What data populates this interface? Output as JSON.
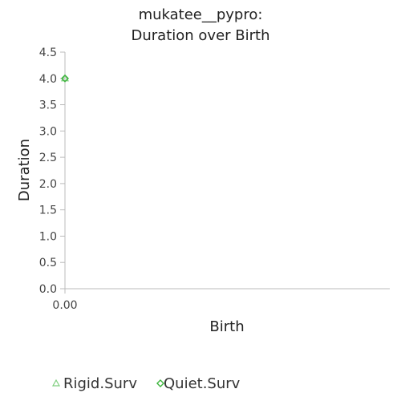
{
  "chart_data": {
    "type": "scatter",
    "title": [
      "mukatee__pypro:",
      "Duration over Birth"
    ],
    "xlabel": "Birth",
    "ylabel": "Duration",
    "y_ticks": [
      "0.0",
      "0.5",
      "1.0",
      "1.5",
      "2.0",
      "2.5",
      "3.0",
      "3.5",
      "4.0",
      "4.5"
    ],
    "y_tick_values": [
      0.0,
      0.5,
      1.0,
      1.5,
      2.0,
      2.5,
      3.0,
      3.5,
      4.0,
      4.5
    ],
    "x_ticks": [
      "0.00"
    ],
    "x_tick_values": [
      0.0
    ],
    "ylim": [
      0.0,
      4.5
    ],
    "xlim": [
      0.0,
      1.0
    ],
    "grid": false,
    "legend_position": "bottom",
    "series": [
      {
        "name": "Rigid.Surv",
        "marker": "triangle",
        "color": "#7fcf7f",
        "points": [
          [
            0.0,
            4.0
          ]
        ]
      },
      {
        "name": "Quiet.Surv",
        "marker": "diamond",
        "color": "#3cb43c",
        "points": [
          [
            0.0,
            4.0
          ]
        ]
      }
    ]
  }
}
